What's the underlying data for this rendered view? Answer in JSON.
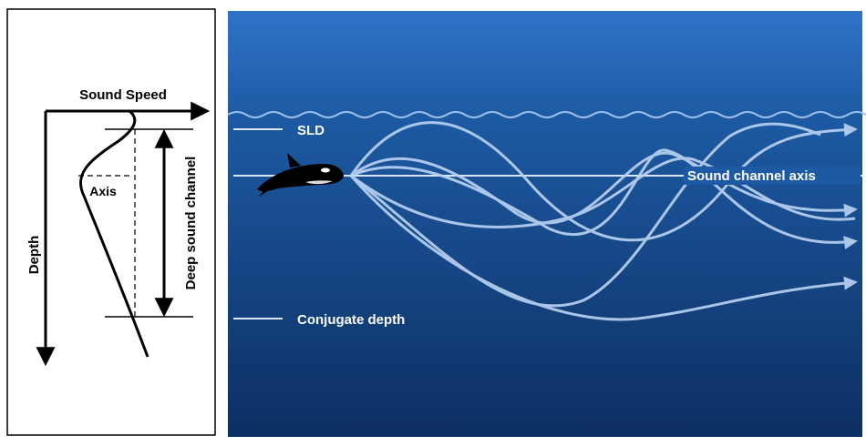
{
  "left_panel": {
    "x_axis_label": "Sound Speed",
    "y_axis_label": "Depth",
    "axis_label": "Axis",
    "channel_label": "Deep sound channel"
  },
  "right_panel": {
    "sld_label": "SLD",
    "axis_label": "Sound channel axis",
    "conjugate_label": "Conjugate depth"
  }
}
